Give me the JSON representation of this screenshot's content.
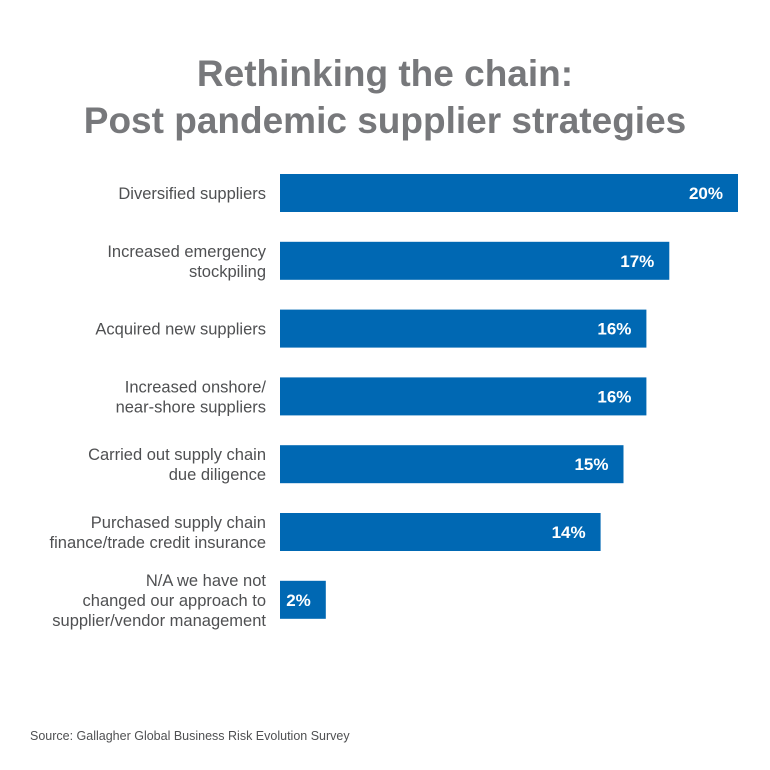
{
  "title_line1": "Rethinking the chain:",
  "title_line2": "Post pandemic supplier strategies",
  "source": "Source: Gallagher Global Business Risk Evolution Survey",
  "colors": {
    "bar": "#0068b3",
    "title": "#77787b",
    "label": "#4f5052"
  },
  "chart_data": {
    "type": "bar",
    "orientation": "horizontal",
    "title": "Rethinking the chain: Post pandemic supplier strategies",
    "categories": [
      [
        "Diversified suppliers"
      ],
      [
        "Increased emergency",
        "stockpiling"
      ],
      [
        "Acquired new suppliers"
      ],
      [
        "Increased onshore/",
        "near-shore suppliers"
      ],
      [
        "Carried out supply chain",
        "due diligence"
      ],
      [
        "Purchased supply chain",
        "finance/trade credit insurance"
      ],
      [
        "N/A we have not",
        "changed our approach to",
        "supplier/vendor management"
      ]
    ],
    "values": [
      20,
      17,
      16,
      16,
      15,
      14,
      2
    ],
    "value_labels": [
      "20%",
      "17%",
      "16%",
      "16%",
      "15%",
      "14%",
      "2%"
    ],
    "unit": "%",
    "xlim": [
      0,
      20
    ],
    "grid": false,
    "legend": "none"
  }
}
